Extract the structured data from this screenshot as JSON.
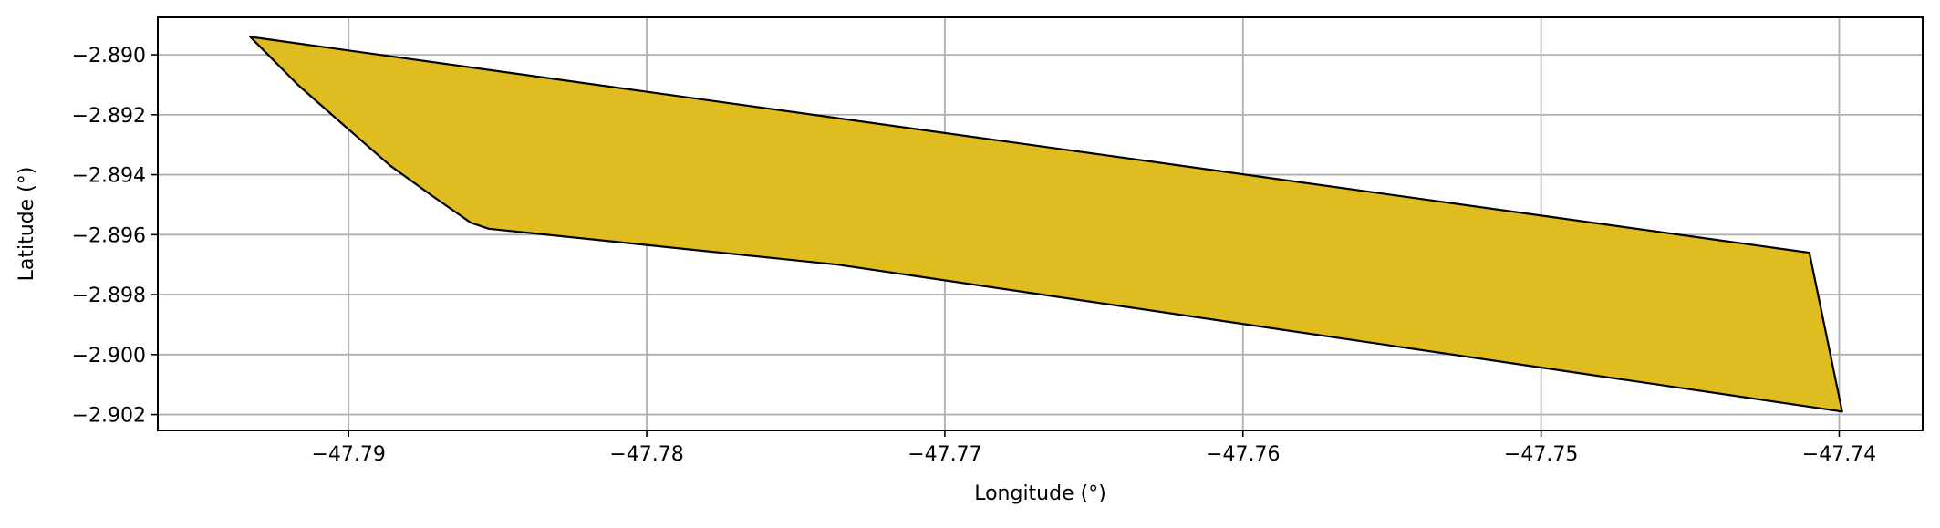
{
  "chart_data": {
    "type": "area",
    "xlabel": "Longitude (°)",
    "ylabel": "Latitude (°)",
    "xlim": [
      -47.7964,
      -47.7372
    ],
    "ylim": [
      -2.90253,
      -2.88875
    ],
    "x_ticks": [
      -47.79,
      -47.78,
      -47.77,
      -47.76,
      -47.75,
      -47.74
    ],
    "x_tick_labels": [
      "−47.79",
      "−47.78",
      "−47.77",
      "−47.76",
      "−47.75",
      "−47.74"
    ],
    "y_ticks": [
      -2.89,
      -2.892,
      -2.894,
      -2.896,
      -2.898,
      -2.9,
      -2.902
    ],
    "y_tick_labels": [
      "−2.890",
      "−2.892",
      "−2.894",
      "−2.896",
      "−2.898",
      "−2.900",
      "−2.902"
    ],
    "grid": true,
    "polygon_fill_color": "#dfbd20",
    "polygon_edge_color": "#000000",
    "polygon": [
      [
        -47.7933,
        -2.8894
      ],
      [
        -47.741,
        -2.8966
      ],
      [
        -47.7399,
        -2.9019
      ],
      [
        -47.7736,
        -2.897
      ],
      [
        -47.7853,
        -2.8958
      ],
      [
        -47.7859,
        -2.8956
      ],
      [
        -47.7872,
        -2.8947
      ],
      [
        -47.7886,
        -2.8937
      ],
      [
        -47.7901,
        -2.8924
      ],
      [
        -47.7917,
        -2.891
      ],
      [
        -47.7928,
        -2.8899
      ],
      [
        -47.7933,
        -2.8894
      ]
    ]
  }
}
